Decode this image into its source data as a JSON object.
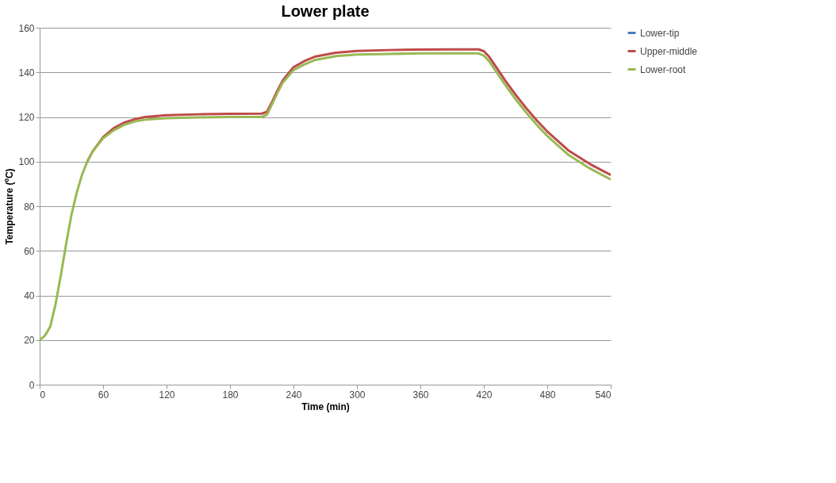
{
  "chart_data": {
    "type": "line",
    "title": "Lower plate",
    "xlabel": "Time (min)",
    "ylabel": "Temperature (ºC)",
    "xlim": [
      0,
      540
    ],
    "xticks": [
      0,
      60,
      120,
      180,
      240,
      300,
      360,
      420,
      480,
      540
    ],
    "ylim": [
      0,
      160
    ],
    "yticks": [
      0,
      20,
      40,
      60,
      80,
      100,
      120,
      140,
      160
    ],
    "grid": "y",
    "legend": "right",
    "marker": "none",
    "line_style": "solid",
    "x": [
      0,
      5,
      10,
      15,
      20,
      25,
      30,
      35,
      40,
      45,
      50,
      60,
      70,
      80,
      90,
      100,
      120,
      150,
      180,
      210,
      215,
      220,
      225,
      230,
      240,
      250,
      260,
      280,
      300,
      330,
      360,
      390,
      415,
      420,
      425,
      430,
      440,
      450,
      460,
      470,
      480,
      500,
      520,
      540
    ],
    "series": [
      {
        "name": "Lower-tip",
        "color": "#4a7ebb",
        "values": [
          null,
          null,
          null,
          null,
          null,
          null,
          null,
          null,
          null,
          null,
          null,
          null,
          null,
          null,
          null,
          null,
          null,
          null,
          null,
          null,
          null,
          null,
          null,
          null,
          null,
          null,
          null,
          null,
          null,
          null,
          null,
          null,
          null,
          null,
          null,
          null,
          null,
          null,
          null,
          null,
          null,
          null,
          null,
          null
        ]
      },
      {
        "name": "Upper-middle",
        "color": "#be4b48",
        "values": [
          null,
          null,
          null,
          null,
          null,
          null,
          null,
          null,
          null,
          100,
          104.5,
          111,
          115,
          117.5,
          119,
          120,
          120.8,
          121.2,
          121.4,
          121.5,
          122.3,
          127,
          132,
          136.5,
          142.3,
          145,
          147,
          148.8,
          149.6,
          150,
          150.2,
          150.3,
          150.3,
          149.5,
          147,
          143.5,
          136.5,
          130,
          124,
          118.5,
          113.5,
          105,
          99,
          94
        ]
      },
      {
        "name": "Lower-root",
        "color": "#98b954",
        "values": [
          20,
          22,
          26,
          36,
          49,
          63,
          76,
          86,
          94,
          100,
          104.5,
          110.5,
          114,
          116.5,
          118,
          118.8,
          119.5,
          119.8,
          120,
          120,
          121,
          126,
          131,
          135.5,
          141,
          143.5,
          145.5,
          147.3,
          148,
          148.3,
          148.5,
          148.5,
          148.5,
          147.5,
          145,
          141.5,
          134.5,
          128,
          122,
          116.5,
          111.5,
          103,
          97,
          92
        ]
      }
    ]
  }
}
